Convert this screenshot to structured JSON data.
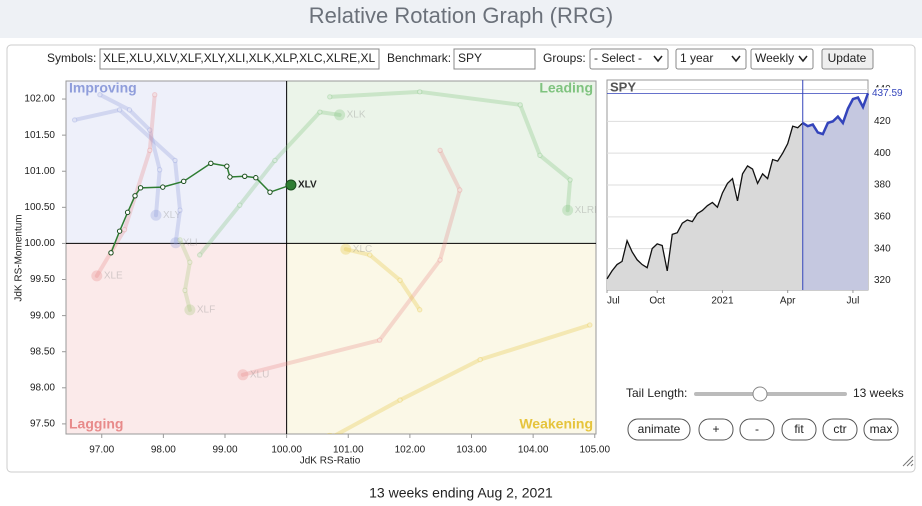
{
  "header": {
    "title": "Relative Rotation Graph (RRG)"
  },
  "controls": {
    "symbols_label": "Symbols:",
    "symbols": "XLE,XLU,XLV,XLF,XLY,XLI,XLK,XLP,XLC,XLRE,XL",
    "benchmark_label": "Benchmark:",
    "benchmark": "SPY",
    "groups_label": "Groups:",
    "groups": "- Select -",
    "period": "1 year",
    "frequency": "Weekly",
    "update": "Update"
  },
  "chart_data": [
    {
      "type": "scatter",
      "x_label": "JdK RS-Ratio",
      "y_label": "JdK RS-Momentum",
      "xlim": [
        96.42,
        105.02
      ],
      "ylim": [
        97.36,
        102.25
      ],
      "xticks": [
        {
          "value": 97,
          "label": "97.00"
        },
        {
          "value": 98,
          "label": "98.00"
        },
        {
          "value": 99,
          "label": "99.00"
        },
        {
          "value": 100,
          "label": "100.00"
        },
        {
          "value": 101,
          "label": "101.00"
        },
        {
          "value": 102,
          "label": "102.00"
        },
        {
          "value": 103,
          "label": "103.00"
        },
        {
          "value": 104,
          "label": "104.00"
        },
        {
          "value": 105,
          "label": "105.00"
        }
      ],
      "yticks": [
        {
          "value": 97.5,
          "label": "97.50"
        },
        {
          "value": 98,
          "label": "98.00"
        },
        {
          "value": 98.5,
          "label": "98.50"
        },
        {
          "value": 99,
          "label": "99.00"
        },
        {
          "value": 99.5,
          "label": "99.50"
        },
        {
          "value": 100,
          "label": "100.00"
        },
        {
          "value": 100.5,
          "label": "100.50"
        },
        {
          "value": 101,
          "label": "101.00"
        },
        {
          "value": 101.5,
          "label": "101.50"
        },
        {
          "value": 102,
          "label": "102.00"
        }
      ],
      "quadrant_lines": {
        "x": 100,
        "y": 100
      },
      "quadrants": [
        {
          "label": "Improving",
          "color": "#8f9ddb",
          "fill": "#eef0fa"
        },
        {
          "label": "Leading",
          "color": "#7fc37f",
          "fill": "#ebf4e9"
        },
        {
          "label": "Lagging",
          "color": "#e88a8a",
          "fill": "#fbeaea"
        },
        {
          "label": "Weakening",
          "color": "#e6c43c",
          "fill": "#fbf8e7"
        }
      ],
      "series": [
        {
          "name": "XLK",
          "color": "#7fc37f",
          "highlight": false,
          "x": [
            98.59,
            99.24,
            99.81,
            100.54,
            100.86
          ],
          "y": [
            99.84,
            100.53,
            101.15,
            101.82,
            101.78
          ]
        },
        {
          "name": "XLRE",
          "color": "#7fc37f",
          "highlight": false,
          "x": [
            100.7,
            102.16,
            103.79,
            104.11,
            104.6,
            104.56
          ],
          "y": [
            102.03,
            102.1,
            101.92,
            101.22,
            100.88,
            100.46
          ]
        },
        {
          "name": "XLY",
          "color": "#8f9ddb",
          "highlight": false,
          "x": [
            96.97,
            97.45,
            97.78,
            97.94,
            97.88
          ],
          "y": [
            102.06,
            101.85,
            101.57,
            101.02,
            100.39
          ]
        },
        {
          "name": "XLI",
          "color": "#8f9ddb",
          "highlight": false,
          "x": [
            96.56,
            97.29,
            98.19,
            98.27,
            98.2
          ],
          "y": [
            101.71,
            101.85,
            101.15,
            100.46,
            100.01
          ]
        },
        {
          "name": "XLF",
          "color": "#a8c97f",
          "highlight": false,
          "x": [
            98.27,
            98.43,
            98.35,
            98.43
          ],
          "y": [
            100.05,
            99.74,
            99.35,
            99.08
          ]
        },
        {
          "name": "XLE",
          "color": "#e88a8a",
          "highlight": false,
          "x": [
            97.86,
            97.78,
            97.37,
            96.92
          ],
          "y": [
            102.06,
            101.29,
            100.19,
            99.55
          ]
        },
        {
          "name": "XLU",
          "color": "#e88a8a",
          "highlight": false,
          "x": [
            102.49,
            102.81,
            102.49,
            101.51,
            99.29
          ],
          "y": [
            101.29,
            100.74,
            99.77,
            98.66,
            98.18
          ]
        },
        {
          "name": "XLC",
          "color": "#e6c43c",
          "highlight": false,
          "x": [
            102.16,
            101.84,
            101.35,
            100.96
          ],
          "y": [
            99.08,
            99.49,
            99.84,
            99.92
          ]
        },
        {
          "name": "XLP",
          "color": "#e6c43c",
          "highlight": false,
          "x": [
            104.92,
            103.14,
            101.84,
            100.7
          ],
          "y": [
            98.87,
            98.39,
            97.83,
            97.3
          ]
        },
        {
          "name": "XLV",
          "color": "#2e7d32",
          "highlight": true,
          "x": [
            97.15,
            97.29,
            97.42,
            97.54,
            97.63,
            97.99,
            98.33,
            98.77,
            99.03,
            99.08,
            99.32,
            99.5,
            99.73,
            100.07
          ],
          "y": [
            99.87,
            100.17,
            100.43,
            100.66,
            100.77,
            100.78,
            100.86,
            101.11,
            101.07,
            100.92,
            100.93,
            100.91,
            100.71,
            100.81
          ]
        }
      ]
    },
    {
      "type": "line",
      "title": "SPY",
      "color": "#3344bb",
      "categories": [
        "Jul",
        null,
        null,
        null,
        null,
        null,
        null,
        null,
        null,
        null,
        "Oct",
        null,
        null,
        null,
        null,
        null,
        null,
        null,
        null,
        null,
        null,
        null,
        null,
        "2021",
        null,
        null,
        null,
        null,
        null,
        null,
        null,
        null,
        null,
        null,
        null,
        null,
        "Apr",
        null,
        null,
        null,
        null,
        null,
        null,
        null,
        null,
        null,
        null,
        null,
        null,
        "Jul",
        null,
        null,
        null
      ],
      "values": [
        321,
        326,
        330,
        332,
        345,
        338,
        333,
        330,
        328,
        340,
        343,
        342,
        326,
        349,
        350,
        356,
        358,
        357,
        362,
        364,
        367,
        369,
        366,
        375,
        381,
        384,
        370,
        387,
        392,
        390,
        381,
        387,
        384,
        396,
        395,
        400,
        406,
        417,
        416,
        419,
        417,
        418,
        413,
        412,
        419,
        420,
        423,
        419,
        428,
        434,
        435,
        429,
        437.59
      ],
      "ylim": [
        314,
        446
      ],
      "yticks": [
        320,
        340,
        360,
        380,
        400,
        420,
        440
      ]
    }
  ],
  "tail": {
    "label": "Tail Length:",
    "value": 13,
    "value_label": "13 weeks"
  },
  "buttons": [
    "animate",
    "+",
    "-",
    "fit",
    "ctr",
    "max"
  ],
  "footer": "13 weeks ending Aug 2, 2021"
}
